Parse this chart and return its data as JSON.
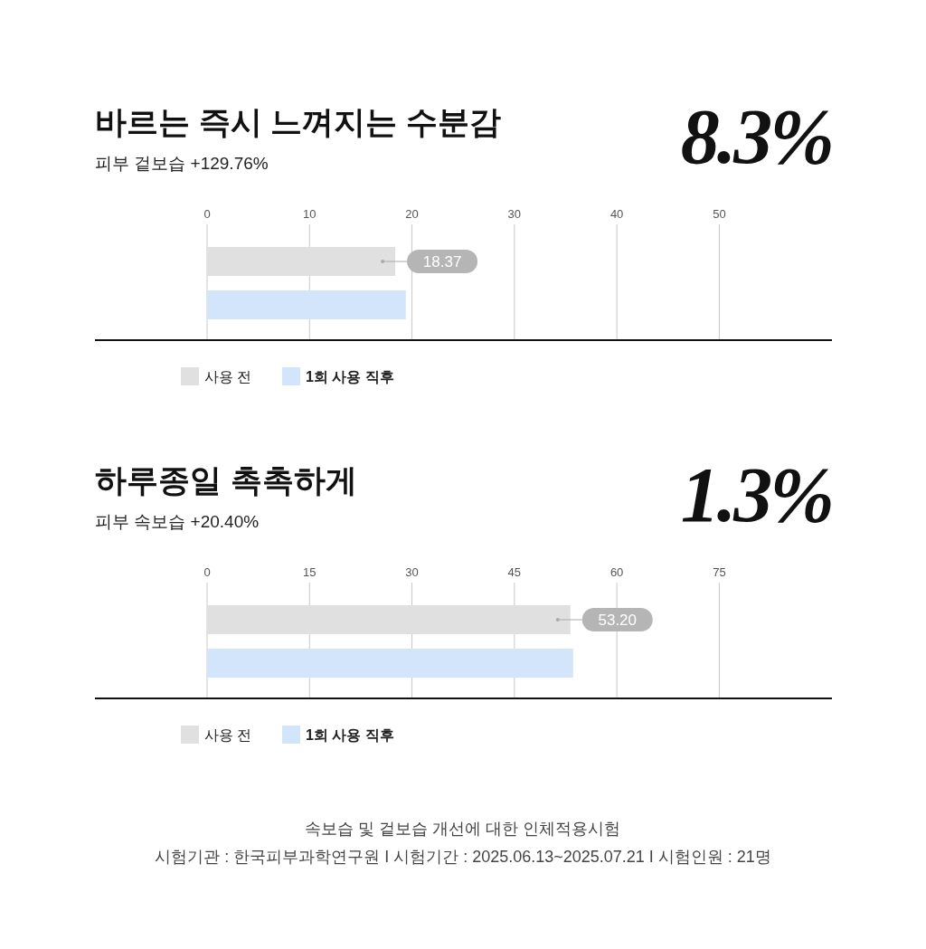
{
  "chart_data": [
    {
      "type": "bar",
      "orientation": "horizontal",
      "title": "바르는 즉시 느껴지는 수분감",
      "subtitle": "피부 겉보습 +129.76%",
      "annotations": [
        "8.3%"
      ],
      "categories": [
        null
      ],
      "xlim": [
        0,
        61
      ],
      "xticks": [
        0,
        10,
        20,
        30,
        40,
        50
      ],
      "grid": "x",
      "legend": "bottom left",
      "series": [
        {
          "name": "사용 전",
          "color": "#e0e0e0",
          "values": [
            18.37
          ],
          "value_labels": [
            "18.37"
          ]
        },
        {
          "name": "1회 사용 직후",
          "color": "#d2e5fa",
          "values": [
            19.4
          ]
        }
      ]
    },
    {
      "type": "bar",
      "orientation": "horizontal",
      "title": "하루종일 촉촉하게",
      "subtitle": "피부 속보습 +20.40%",
      "annotations": [
        "1.3%",
        "속보습 및 겉보습 개선에 대한 인체적용시험",
        "시험기관 : 한국피부과학연구원 I 시험기간 : 2025.06.13~2025.07.21 I 시험인원 : 21명"
      ],
      "categories": [
        null
      ],
      "xlim": [
        0,
        91.5
      ],
      "xticks": [
        0,
        15,
        30,
        45,
        60,
        75
      ],
      "grid": "x",
      "legend": "bottom left",
      "series": [
        {
          "name": "사용 전",
          "color": "#e0e0e0",
          "values": [
            53.2
          ],
          "value_labels": [
            "53.20"
          ]
        },
        {
          "name": "1회 사용 직후",
          "color": "#d2e5fa",
          "values": [
            53.6
          ]
        }
      ]
    }
  ]
}
